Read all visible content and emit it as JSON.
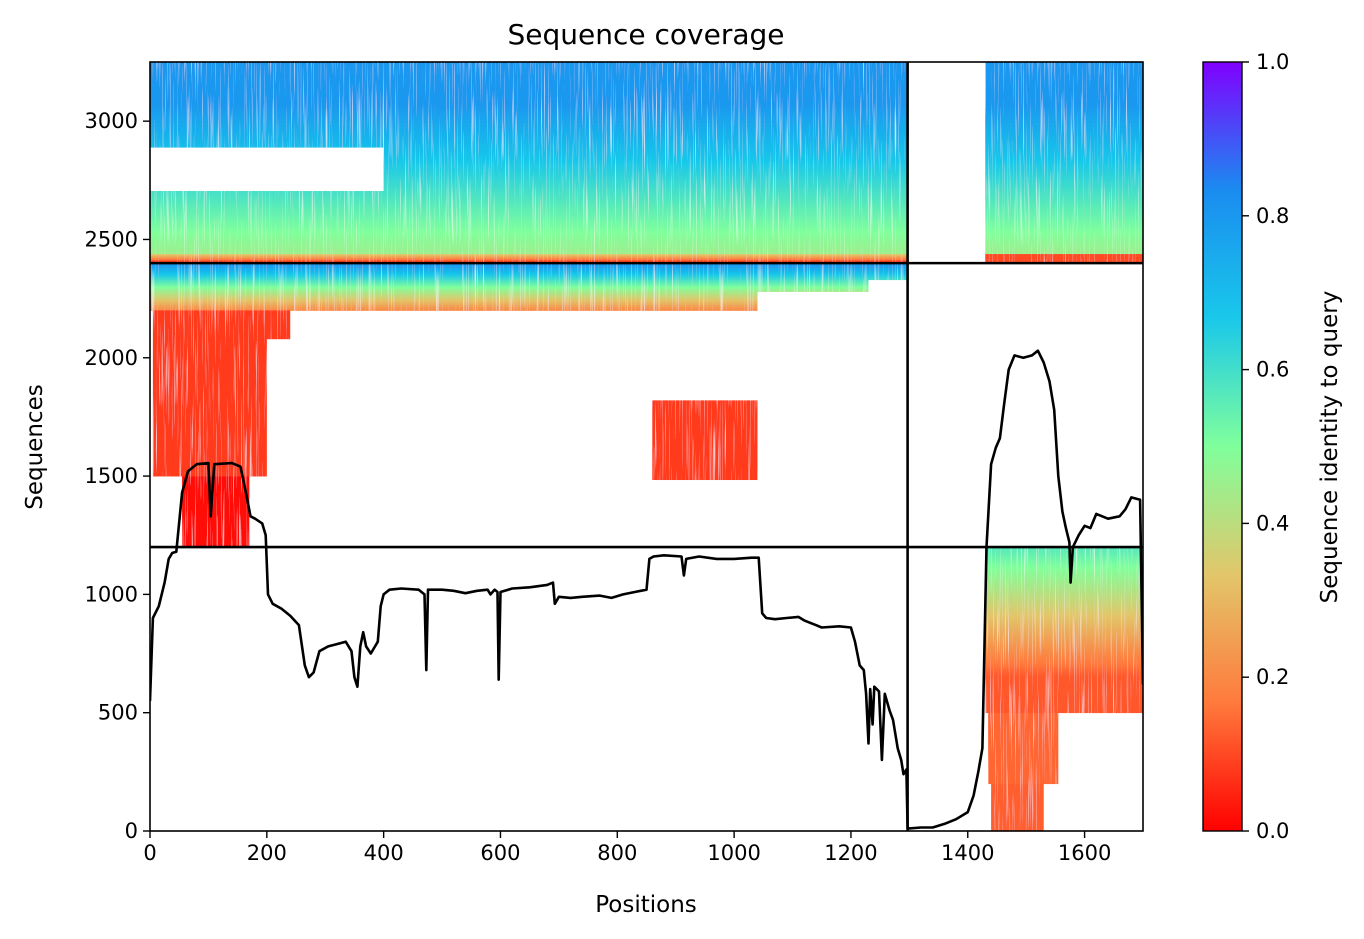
{
  "chart_data": {
    "type": "heatmap",
    "title": "Sequence coverage",
    "xlabel": "Positions",
    "ylabel": "Sequences",
    "xlim": [
      0,
      1700
    ],
    "ylim": [
      0,
      3250
    ],
    "xticks": [
      "0",
      "200",
      "400",
      "600",
      "800",
      "1000",
      "1200",
      "1400",
      "1600"
    ],
    "yticks": [
      "0",
      "500",
      "1000",
      "1500",
      "2000",
      "2500",
      "3000"
    ],
    "colorbar": {
      "label": "Sequence identity to query",
      "min": 0,
      "max": 1,
      "ticks": [
        "0.0",
        "0.2",
        "0.4",
        "0.6",
        "0.8",
        "1.0"
      ],
      "colormap": [
        "#ff0000",
        "#ff7a3c",
        "#e2c66a",
        "#80ff9c",
        "#19c8ea",
        "#1a8cf0",
        "#8000ff"
      ]
    },
    "dividers": {
      "vertical_x": [
        1297
      ],
      "horizontal_y": [
        1200,
        2400
      ]
    },
    "grid": false,
    "coverage_blocks": [
      {
        "x": [
          0,
          1297
        ],
        "y": [
          2400,
          3250
        ],
        "identity_range": [
          0.15,
          0.8
        ]
      },
      {
        "x": [
          1430,
          1700
        ],
        "y": [
          2400,
          3250
        ],
        "identity_range": [
          0.15,
          0.8
        ]
      },
      {
        "x": [
          0,
          1297
        ],
        "y": [
          1200,
          2400
        ],
        "identity_range": [
          0.02,
          0.8
        ]
      },
      {
        "x": [
          1430,
          1700
        ],
        "y": [
          0,
          1200
        ],
        "identity_range": [
          0.05,
          0.55
        ]
      }
    ],
    "series": [
      {
        "type": "line",
        "color": "#000000",
        "points": [
          [
            0,
            550
          ],
          [
            5,
            900
          ],
          [
            15,
            950
          ],
          [
            25,
            1050
          ],
          [
            32,
            1150
          ],
          [
            38,
            1175
          ],
          [
            45,
            1180
          ],
          [
            55,
            1430
          ],
          [
            65,
            1520
          ],
          [
            80,
            1550
          ],
          [
            100,
            1555
          ],
          [
            104,
            1330
          ],
          [
            110,
            1550
          ],
          [
            140,
            1555
          ],
          [
            155,
            1540
          ],
          [
            165,
            1420
          ],
          [
            172,
            1330
          ],
          [
            180,
            1320
          ],
          [
            192,
            1300
          ],
          [
            198,
            1250
          ],
          [
            202,
            1000
          ],
          [
            210,
            960
          ],
          [
            225,
            940
          ],
          [
            240,
            910
          ],
          [
            255,
            870
          ],
          [
            265,
            700
          ],
          [
            272,
            650
          ],
          [
            280,
            670
          ],
          [
            290,
            760
          ],
          [
            305,
            780
          ],
          [
            320,
            790
          ],
          [
            335,
            800
          ],
          [
            345,
            760
          ],
          [
            350,
            650
          ],
          [
            355,
            610
          ],
          [
            360,
            780
          ],
          [
            365,
            840
          ],
          [
            370,
            780
          ],
          [
            378,
            750
          ],
          [
            390,
            800
          ],
          [
            395,
            950
          ],
          [
            400,
            1000
          ],
          [
            410,
            1020
          ],
          [
            430,
            1025
          ],
          [
            460,
            1020
          ],
          [
            470,
            1000
          ],
          [
            473,
            680
          ],
          [
            476,
            1020
          ],
          [
            500,
            1020
          ],
          [
            520,
            1015
          ],
          [
            540,
            1005
          ],
          [
            560,
            1015
          ],
          [
            578,
            1020
          ],
          [
            583,
            1000
          ],
          [
            590,
            1020
          ],
          [
            595,
            1010
          ],
          [
            597,
            640
          ],
          [
            600,
            1010
          ],
          [
            620,
            1025
          ],
          [
            650,
            1030
          ],
          [
            680,
            1040
          ],
          [
            690,
            1050
          ],
          [
            693,
            960
          ],
          [
            700,
            990
          ],
          [
            720,
            985
          ],
          [
            740,
            990
          ],
          [
            770,
            995
          ],
          [
            790,
            985
          ],
          [
            810,
            1000
          ],
          [
            830,
            1010
          ],
          [
            850,
            1020
          ],
          [
            855,
            1150
          ],
          [
            862,
            1160
          ],
          [
            880,
            1165
          ],
          [
            910,
            1160
          ],
          [
            914,
            1080
          ],
          [
            918,
            1150
          ],
          [
            940,
            1160
          ],
          [
            970,
            1150
          ],
          [
            1000,
            1150
          ],
          [
            1030,
            1155
          ],
          [
            1042,
            1155
          ],
          [
            1048,
            920
          ],
          [
            1055,
            900
          ],
          [
            1070,
            895
          ],
          [
            1090,
            900
          ],
          [
            1110,
            905
          ],
          [
            1120,
            890
          ],
          [
            1130,
            880
          ],
          [
            1140,
            870
          ],
          [
            1150,
            860
          ],
          [
            1180,
            865
          ],
          [
            1200,
            860
          ],
          [
            1207,
            800
          ],
          [
            1215,
            700
          ],
          [
            1222,
            680
          ],
          [
            1226,
            580
          ],
          [
            1230,
            370
          ],
          [
            1233,
            600
          ],
          [
            1237,
            450
          ],
          [
            1240,
            610
          ],
          [
            1248,
            590
          ],
          [
            1253,
            300
          ],
          [
            1258,
            580
          ],
          [
            1266,
            510
          ],
          [
            1272,
            470
          ],
          [
            1280,
            350
          ],
          [
            1286,
            300
          ],
          [
            1290,
            240
          ],
          [
            1295,
            260
          ],
          [
            1297,
            10
          ],
          [
            1320,
            15
          ],
          [
            1340,
            15
          ],
          [
            1360,
            30
          ],
          [
            1380,
            50
          ],
          [
            1400,
            80
          ],
          [
            1410,
            150
          ],
          [
            1418,
            250
          ],
          [
            1425,
            350
          ],
          [
            1432,
            1200
          ],
          [
            1440,
            1550
          ],
          [
            1448,
            1620
          ],
          [
            1455,
            1660
          ],
          [
            1462,
            1800
          ],
          [
            1470,
            1950
          ],
          [
            1480,
            2010
          ],
          [
            1495,
            2000
          ],
          [
            1510,
            2010
          ],
          [
            1520,
            2030
          ],
          [
            1530,
            1980
          ],
          [
            1540,
            1900
          ],
          [
            1548,
            1780
          ],
          [
            1555,
            1500
          ],
          [
            1562,
            1350
          ],
          [
            1568,
            1280
          ],
          [
            1574,
            1220
          ],
          [
            1576,
            1050
          ],
          [
            1580,
            1200
          ],
          [
            1590,
            1250
          ],
          [
            1600,
            1290
          ],
          [
            1610,
            1280
          ],
          [
            1620,
            1340
          ],
          [
            1640,
            1320
          ],
          [
            1660,
            1330
          ],
          [
            1670,
            1360
          ],
          [
            1680,
            1410
          ],
          [
            1695,
            1400
          ],
          [
            1700,
            620
          ]
        ]
      }
    ]
  }
}
